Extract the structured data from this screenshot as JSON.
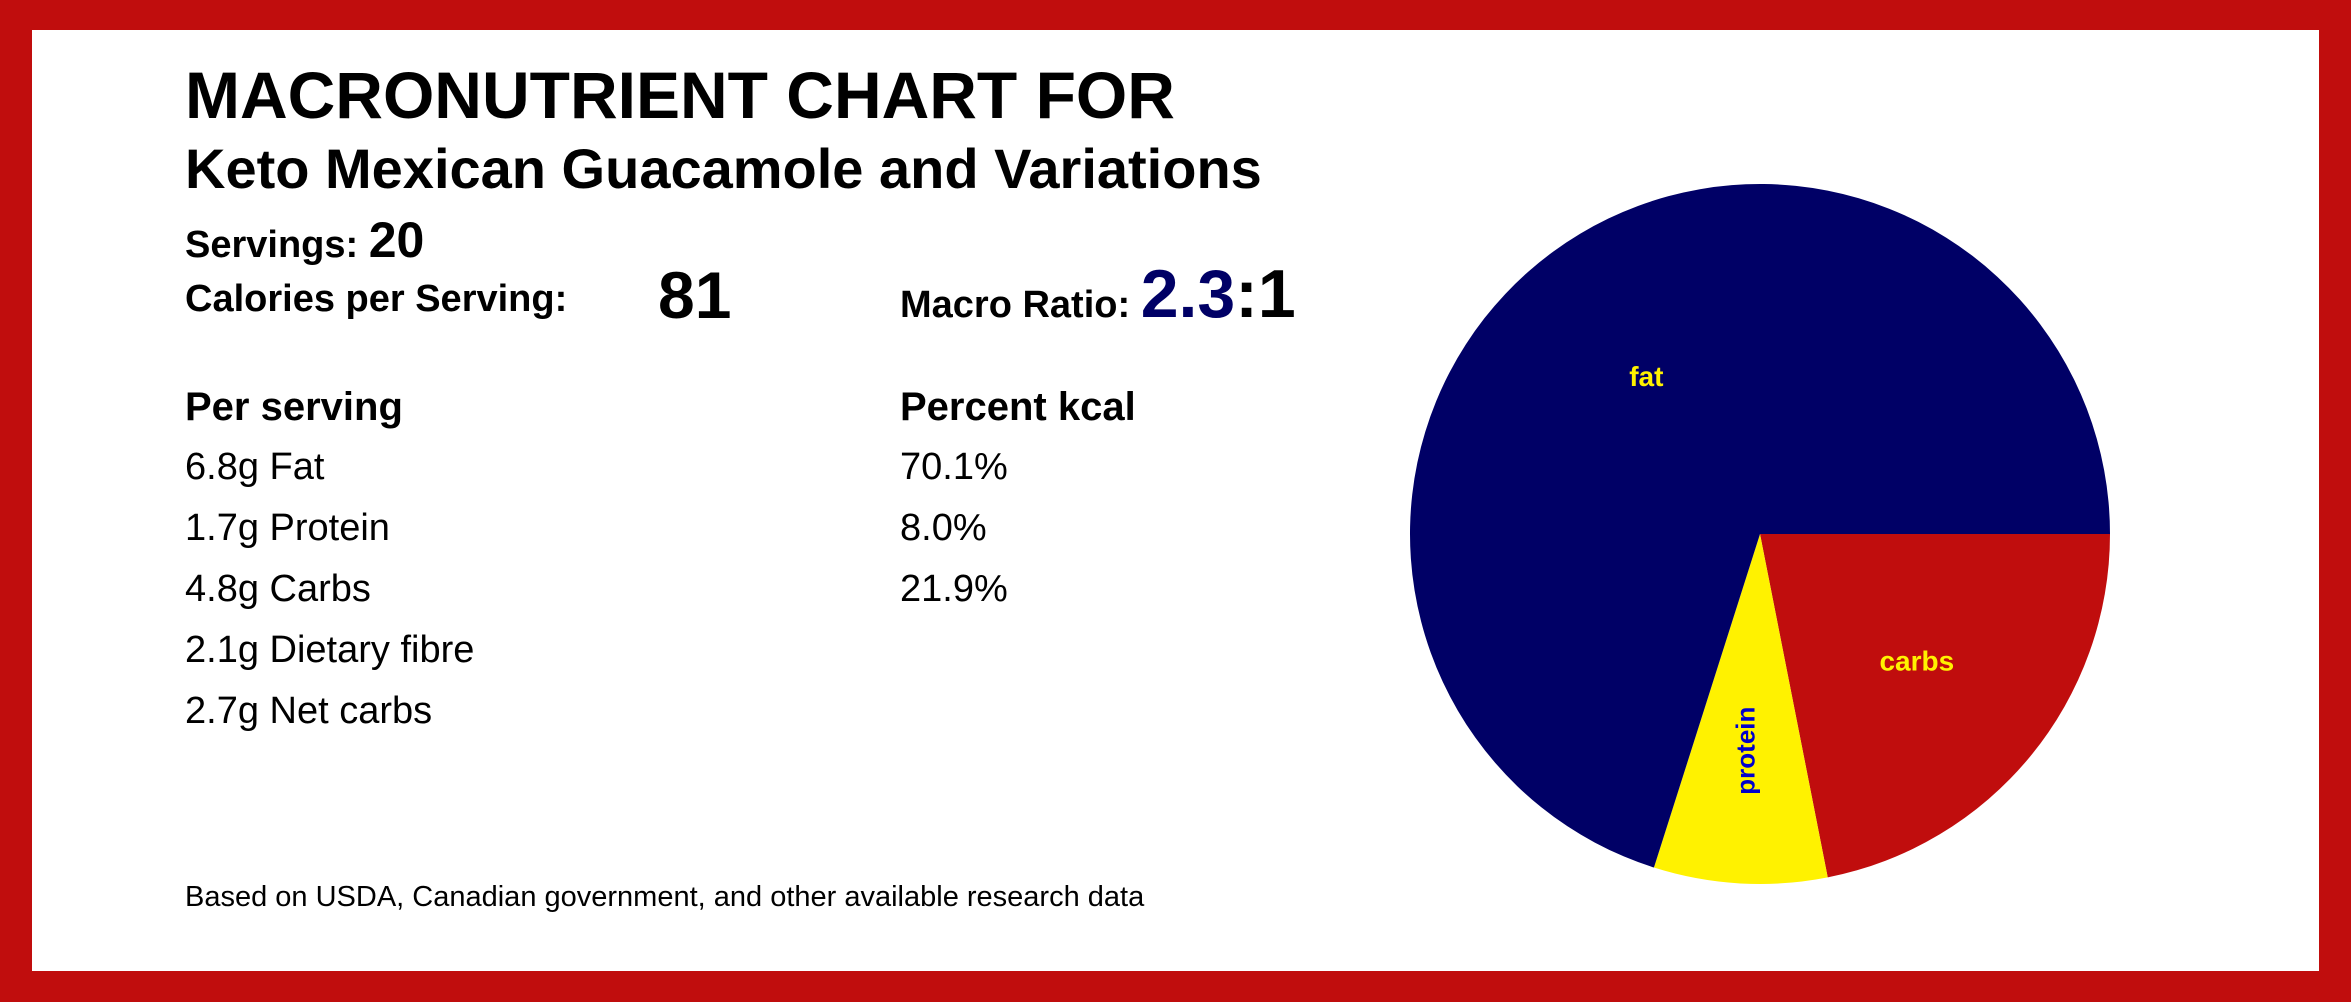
{
  "title": "MACRONUTRIENT CHART FOR",
  "subtitle": "Keto Mexican Guacamole and Variations",
  "servings": {
    "label": "Servings:",
    "value": "20"
  },
  "calories": {
    "label": "Calories per Serving:",
    "value": "81"
  },
  "macro_ratio": {
    "label": "Macro Ratio:",
    "numerator": "2.3",
    "denominator": ":1"
  },
  "per_serving": {
    "header": "Per serving",
    "items": [
      "6.8g Fat",
      "1.7g Protein",
      "4.8g Carbs",
      "2.1g Dietary fibre",
      "2.7g Net carbs"
    ]
  },
  "percent_kcal": {
    "header": "Percent kcal",
    "items": [
      "70.1%",
      "8.0%",
      "21.9%"
    ]
  },
  "footnote": "Based on USDA, Canadian government, and other available research data",
  "colors": {
    "border": "#c00d0d",
    "fat": "#000066",
    "protein": "#fff200",
    "carbs": "#c00d0d",
    "fat_label": "#fff200",
    "protein_label": "#0000cc",
    "carbs_label": "#fff200"
  },
  "chart_data": {
    "type": "pie",
    "slices": [
      {
        "label": "carbs",
        "value": 21.9
      },
      {
        "label": "protein",
        "value": 8.0
      },
      {
        "label": "fat",
        "value": 70.1
      }
    ]
  }
}
